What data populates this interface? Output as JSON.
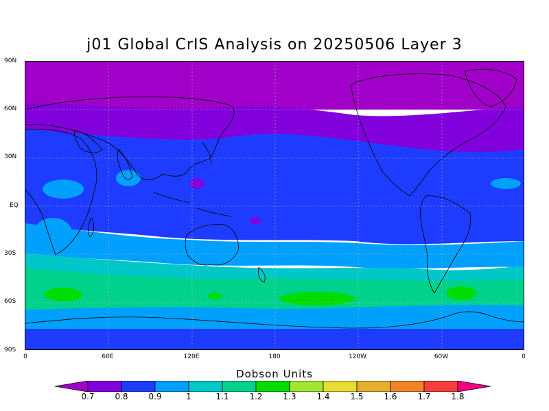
{
  "title": "j01 Global CrIS Analysis on 20250506 Layer 3",
  "y_axis_labels": [
    "90N",
    "60N",
    "30N",
    "EQ",
    "30S",
    "60S",
    "90S"
  ],
  "x_axis_labels": [
    "0",
    "60E",
    "120E",
    "180",
    "120W",
    "60W",
    "0"
  ],
  "colorbar": {
    "title": "Dobson Units",
    "tick_labels": [
      "0.7",
      "0.8",
      "0.9",
      "1",
      "1.1",
      "1.2",
      "1.3",
      "1.4",
      "1.5",
      "1.6",
      "1.7",
      "1.8"
    ],
    "colors": [
      "#a000c8",
      "#8200dc",
      "#1e3cff",
      "#00a0ff",
      "#00c8c8",
      "#00d28c",
      "#00dc00",
      "#a0e632",
      "#e6dc32",
      "#e6af2d",
      "#f08228",
      "#fa3c3c",
      "#f00082"
    ]
  },
  "chart_data": {
    "type": "heatmap",
    "title": "j01 Global CrIS Analysis on 20250506 Layer 3",
    "colorbar_label": "Dobson Units",
    "x_range_lon": [
      0,
      360
    ],
    "y_range_lat": [
      -90,
      90
    ],
    "levels": [
      0.7,
      0.8,
      0.9,
      1.0,
      1.1,
      1.2,
      1.3,
      1.4,
      1.5,
      1.6,
      1.7,
      1.8
    ],
    "zonal_bands": [
      {
        "lat_range": [
          60,
          90
        ],
        "value_range": [
          0.7,
          0.8
        ]
      },
      {
        "lat_range": [
          40,
          60
        ],
        "value_range": [
          0.8,
          0.9
        ]
      },
      {
        "lat_range": [
          -20,
          40
        ],
        "value_range": [
          0.9,
          1.0
        ]
      },
      {
        "lat_range": [
          -35,
          -20
        ],
        "value_range": [
          1.0,
          1.1
        ]
      },
      {
        "lat_range": [
          -45,
          -35
        ],
        "value_range": [
          1.1,
          1.2
        ]
      },
      {
        "lat_range": [
          -62,
          -45
        ],
        "value_range": [
          1.2,
          1.3
        ]
      },
      {
        "lat_range": [
          -75,
          -62
        ],
        "value_range": [
          1.0,
          1.1
        ]
      },
      {
        "lat_range": [
          -90,
          -75
        ],
        "value_range": [
          0.8,
          0.9
        ]
      }
    ],
    "grid": true
  }
}
